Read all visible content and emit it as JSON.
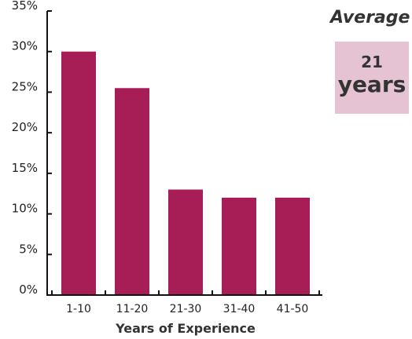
{
  "chart_data": {
    "type": "bar",
    "categories": [
      "1-10",
      "11-20",
      "21-30",
      "31-40",
      "41-50"
    ],
    "values": [
      30,
      25.5,
      13,
      12,
      12
    ],
    "xlabel": "Years of Experience",
    "ylabel": "",
    "ylim": [
      0,
      35
    ],
    "yticks": [
      "0%",
      "5%",
      "10%",
      "15%",
      "20%",
      "25%",
      "30%",
      "35%"
    ],
    "bar_color": "#a61e55",
    "grid": false,
    "legend": "none"
  },
  "callout": {
    "title": "Average",
    "value": "21",
    "unit": "years",
    "box_color": "#e6c3d2"
  }
}
